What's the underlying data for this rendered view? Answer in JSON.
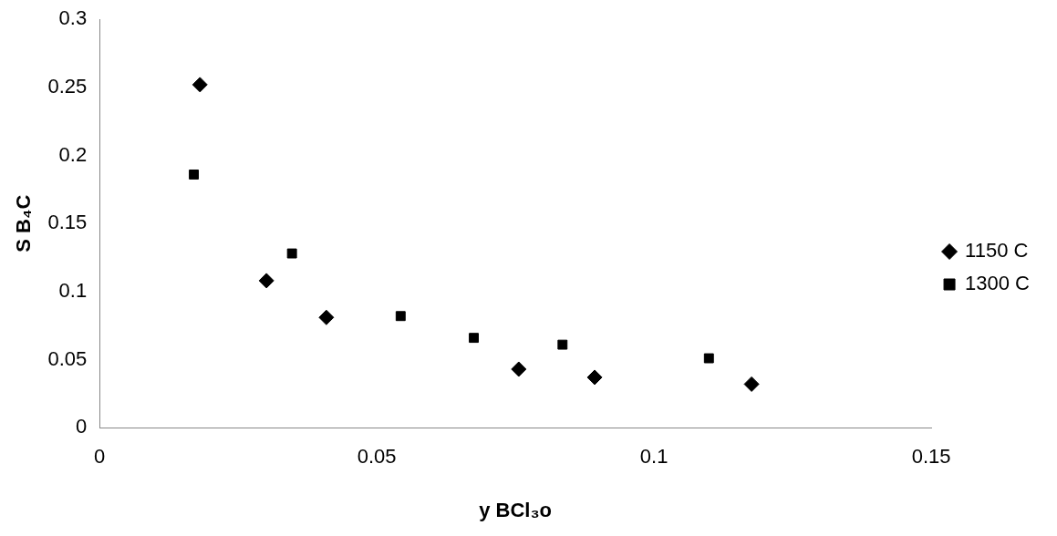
{
  "chart_data": {
    "type": "scatter",
    "xlabel": "y BCl₃o",
    "ylabel": "S B₄C",
    "xlim": [
      0,
      0.15
    ],
    "xticks": [
      0,
      0.05,
      0.1,
      0.15
    ],
    "ylim": [
      0,
      0.3
    ],
    "yticks": [
      0,
      0.05,
      0.1,
      0.15,
      0.2,
      0.25,
      0.3
    ],
    "grid": false,
    "legend": "right",
    "series": [
      {
        "name": "1150 C",
        "color": "#000000",
        "marker": "diamond",
        "x": [
          0.0181,
          0.0301,
          0.0409,
          0.0756,
          0.0893,
          0.1176
        ],
        "values": [
          0.252,
          0.108,
          0.081,
          0.043,
          0.037,
          0.032
        ]
      },
      {
        "name": "1300 C",
        "color": "#000000",
        "marker": "square",
        "x": [
          0.017,
          0.0347,
          0.0543,
          0.0675,
          0.0835,
          0.1099
        ],
        "values": [
          0.186,
          0.128,
          0.082,
          0.066,
          0.061,
          0.051
        ]
      }
    ]
  }
}
